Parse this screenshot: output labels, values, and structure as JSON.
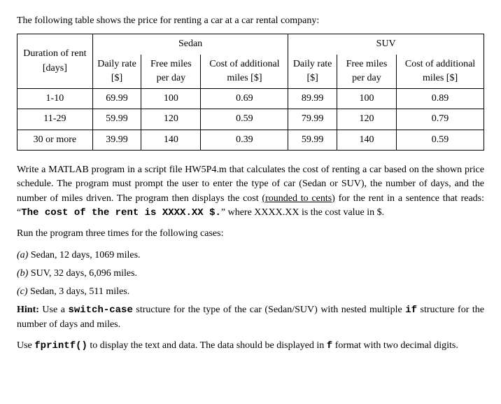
{
  "intro": "The following table shows the price for renting a car at a car rental company:",
  "table": {
    "headers": {
      "duration": "Duration of rent [days]",
      "sedan": "Sedan",
      "suv": "SUV",
      "daily_rate": "Daily rate [$]",
      "free_miles": "Free miles per day",
      "cost_add": "Cost of additional miles [$]"
    },
    "rows": [
      {
        "dur": "1-10",
        "s_rate": "69.99",
        "s_free": "100",
        "s_cost": "0.69",
        "v_rate": "89.99",
        "v_free": "100",
        "v_cost": "0.89"
      },
      {
        "dur": "11-29",
        "s_rate": "59.99",
        "s_free": "120",
        "s_cost": "0.59",
        "v_rate": "79.99",
        "v_free": "120",
        "v_cost": "0.79"
      },
      {
        "dur": "30 or more",
        "s_rate": "39.99",
        "s_free": "140",
        "s_cost": "0.39",
        "v_rate": "59.99",
        "v_free": "140",
        "v_cost": "0.59"
      }
    ]
  },
  "para1_a": "Write a MATLAB program in a script file HW5P4.m that calculates the cost of renting a car based on the shown price schedule. The program must prompt the user to enter the type of car (Sedan or SUV), the number of days, and the number of miles driven. The program then displays the cost ",
  "para1_u": "(rounded to cents)",
  "para1_b": " for the rent in a sentence that reads: “",
  "para1_code": "The cost of the rent is XXXX.XX $.",
  "para1_c": "” where XXXX.XX is the cost value in $.",
  "run_line": "Run the program three times for the following cases:",
  "cases": [
    {
      "label": "(a)",
      "text": " Sedan, 12 days, 1069 miles."
    },
    {
      "label": "(b)",
      "text": " SUV, 32 days, 6,096 miles."
    },
    {
      "label": "(c)",
      "text": " Sedan, 3 days, 511 miles."
    }
  ],
  "hint_label": "Hint:",
  "hint_a": " Use a ",
  "hint_code1": "switch-case",
  "hint_b": " structure for the type of the car (Sedan/SUV) with nested multiple ",
  "hint_code2": "if",
  "hint_c": " structure for the number of days and miles.",
  "last_a": "Use ",
  "last_code1": "fprintf()",
  "last_b": " to display the text and data. The data should be displayed in ",
  "last_code2": "f",
  "last_c": " format with two decimal digits."
}
